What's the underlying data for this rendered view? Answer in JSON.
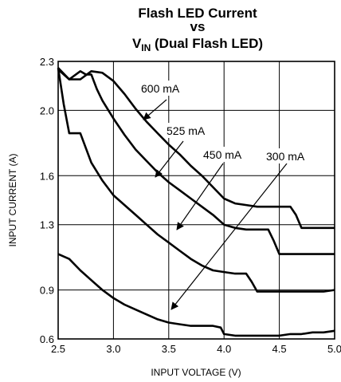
{
  "chart_data": {
    "type": "line",
    "title": {
      "line1": "Flash LED Current",
      "line2": "vs",
      "line3_main": "V",
      "line3_sub": "IN",
      "line3_rest": " (Dual Flash LED)"
    },
    "xlabel": "INPUT VOLTAGE (V)",
    "ylabel": "INPUT CURRENT (A)",
    "xlim": [
      2.5,
      5.0
    ],
    "ylim": [
      0.6,
      2.3
    ],
    "x_ticks": [
      "2.5",
      "3.0",
      "3.5",
      "4.0",
      "4.5",
      "5.0"
    ],
    "x_tick_values": [
      2.5,
      3.0,
      3.5,
      4.0,
      4.5,
      5.0
    ],
    "y_ticks": [
      "0.6",
      "0.9",
      "1.3",
      "1.6",
      "2.0",
      "2.3"
    ],
    "y_tick_values": [
      0.6,
      0.9,
      1.3,
      1.6,
      2.0,
      2.3
    ],
    "grid": true,
    "series": [
      {
        "name": "600 mA",
        "x": [
          2.5,
          2.6,
          2.7,
          2.8,
          2.9,
          3.0,
          3.1,
          3.2,
          3.3,
          3.4,
          3.5,
          3.6,
          3.7,
          3.8,
          3.9,
          4.0,
          4.1,
          4.2,
          4.3,
          4.4,
          4.5,
          4.6,
          4.65,
          4.7,
          4.8,
          4.9,
          5.0
        ],
        "y": [
          2.26,
          2.19,
          2.19,
          2.24,
          2.23,
          2.18,
          2.1,
          2.01,
          1.93,
          1.86,
          1.79,
          1.73,
          1.66,
          1.6,
          1.53,
          1.46,
          1.43,
          1.42,
          1.41,
          1.41,
          1.41,
          1.41,
          1.36,
          1.28,
          1.28,
          1.28,
          1.28
        ]
      },
      {
        "name": "525 mA",
        "x": [
          2.5,
          2.6,
          2.7,
          2.75,
          2.8,
          2.85,
          2.9,
          3.0,
          3.1,
          3.2,
          3.3,
          3.4,
          3.5,
          3.6,
          3.7,
          3.8,
          3.9,
          4.0,
          4.1,
          4.2,
          4.3,
          4.4,
          4.45,
          4.5,
          4.6,
          4.7,
          4.8,
          4.9,
          5.0
        ],
        "y": [
          2.25,
          2.19,
          2.24,
          2.22,
          2.22,
          2.13,
          2.06,
          1.95,
          1.85,
          1.76,
          1.69,
          1.62,
          1.56,
          1.51,
          1.46,
          1.41,
          1.36,
          1.3,
          1.28,
          1.27,
          1.27,
          1.27,
          1.2,
          1.12,
          1.12,
          1.12,
          1.12,
          1.12,
          1.12
        ]
      },
      {
        "name": "450 mA",
        "x": [
          2.5,
          2.55,
          2.6,
          2.7,
          2.8,
          2.9,
          3.0,
          3.1,
          3.2,
          3.3,
          3.4,
          3.5,
          3.6,
          3.7,
          3.8,
          3.9,
          4.0,
          4.1,
          4.2,
          4.25,
          4.3,
          4.4,
          4.5,
          4.6,
          4.7,
          4.8,
          4.9,
          5.0
        ],
        "y": [
          2.26,
          2.04,
          1.86,
          1.86,
          1.68,
          1.57,
          1.48,
          1.42,
          1.36,
          1.3,
          1.24,
          1.19,
          1.14,
          1.09,
          1.05,
          1.02,
          1.01,
          1.0,
          1.0,
          0.95,
          0.89,
          0.89,
          0.89,
          0.89,
          0.89,
          0.89,
          0.89,
          0.9
        ]
      },
      {
        "name": "300 mA",
        "x": [
          2.5,
          2.6,
          2.7,
          2.8,
          2.9,
          3.0,
          3.1,
          3.2,
          3.3,
          3.4,
          3.5,
          3.6,
          3.7,
          3.8,
          3.9,
          3.97,
          4.0,
          4.1,
          4.2,
          4.3,
          4.4,
          4.5,
          4.6,
          4.7,
          4.8,
          4.9,
          5.0
        ],
        "y": [
          1.12,
          1.09,
          1.02,
          0.96,
          0.9,
          0.85,
          0.81,
          0.78,
          0.75,
          0.72,
          0.7,
          0.69,
          0.68,
          0.68,
          0.68,
          0.67,
          0.63,
          0.62,
          0.62,
          0.62,
          0.62,
          0.62,
          0.63,
          0.63,
          0.64,
          0.64,
          0.65
        ]
      }
    ],
    "annotations": [
      {
        "text": "600 mA",
        "points_to_series": "600 mA",
        "target": [
          3.27,
          1.94
        ]
      },
      {
        "text": "525 mA",
        "points_to_series": "525 mA",
        "target": [
          3.39,
          1.58
        ]
      },
      {
        "text": "450 mA",
        "points_to_series": "450 mA",
        "target": [
          3.48,
          1.21
        ]
      },
      {
        "text": "300 mA",
        "points_to_series": "300 mA",
        "target": [
          3.53,
          0.7
        ]
      }
    ]
  }
}
